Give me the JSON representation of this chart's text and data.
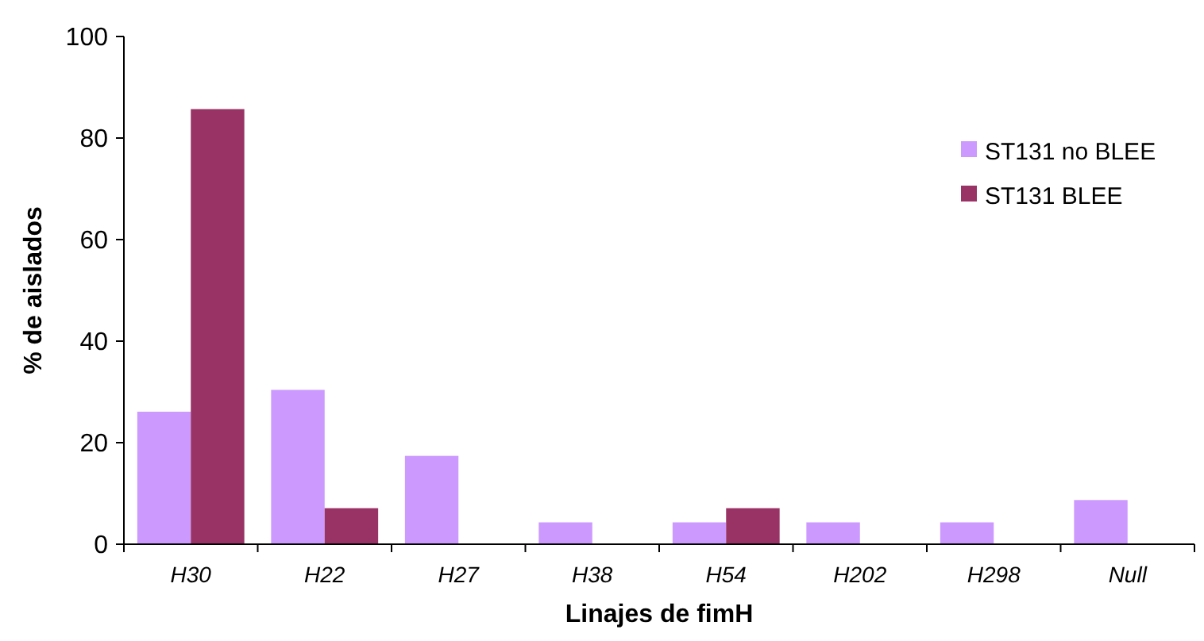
{
  "chart_data": {
    "type": "bar",
    "xlabel": "Linajes de fimH",
    "ylabel": "% de aislados",
    "categories": [
      "H30",
      "H22",
      "H27",
      "H38",
      "H54",
      "H202",
      "H298",
      "Null"
    ],
    "series": [
      {
        "name": "ST131 no BLEE",
        "color": "#cc99ff",
        "values": [
          26.1,
          30.4,
          17.4,
          4.3,
          4.3,
          4.3,
          4.3,
          8.7
        ]
      },
      {
        "name": "ST131 BLEE",
        "color": "#993366",
        "values": [
          85.7,
          7.1,
          null,
          null,
          7.1,
          null,
          null,
          null
        ]
      }
    ],
    "ylim": [
      0,
      100
    ],
    "yticks": [
      0,
      20,
      40,
      60,
      80,
      100
    ],
    "grid": false,
    "legend": "right"
  }
}
